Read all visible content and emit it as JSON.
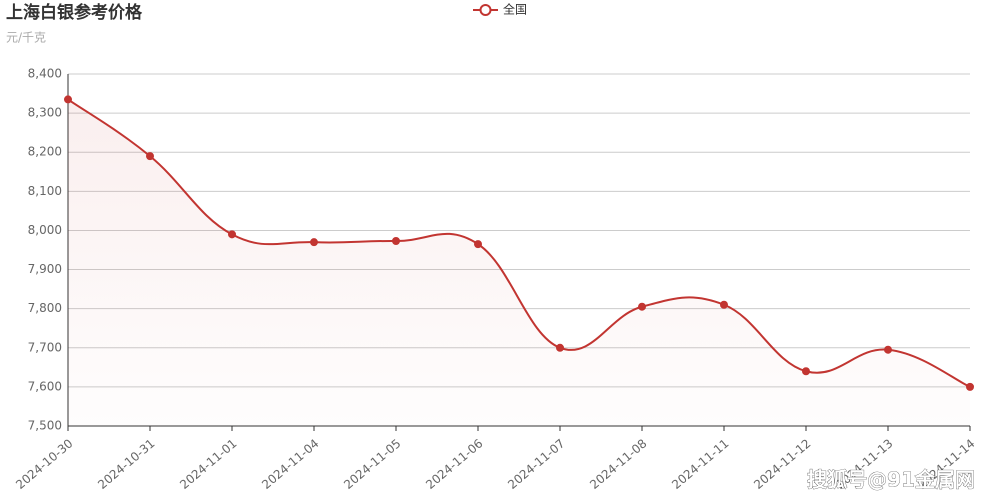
{
  "chart_data": {
    "type": "line",
    "title": "上海白银参考价格",
    "subtitle": "元/千克",
    "categories": [
      "2024-10-30",
      "2024-10-31",
      "2024-11-01",
      "2024-11-04",
      "2024-11-05",
      "2024-11-06",
      "2024-11-07",
      "2024-11-08",
      "2024-11-11",
      "2024-11-12",
      "2024-11-13",
      "2024-11-14"
    ],
    "series": [
      {
        "name": "全国",
        "color": "#c23531",
        "values": [
          8335,
          8190,
          7990,
          7970,
          7973,
          7965,
          7700,
          7805,
          7810,
          7640,
          7695,
          7600
        ]
      }
    ],
    "ylim": [
      7500,
      8400
    ],
    "yticks": [
      {
        "value": 7500,
        "label": "7,500"
      },
      {
        "value": 7600,
        "label": "7,600"
      },
      {
        "value": 7700,
        "label": "7,700"
      },
      {
        "value": 7800,
        "label": "7,800"
      },
      {
        "value": 7900,
        "label": "7,900"
      },
      {
        "value": 8000,
        "label": "8,000"
      },
      {
        "value": 8100,
        "label": "8,100"
      },
      {
        "value": 8200,
        "label": "8,200"
      },
      {
        "value": 8300,
        "label": "8,300"
      },
      {
        "value": 8400,
        "label": "8,400"
      }
    ],
    "grid": true,
    "smooth": true,
    "area": true,
    "watermark": "搜狐号@91金属网"
  }
}
